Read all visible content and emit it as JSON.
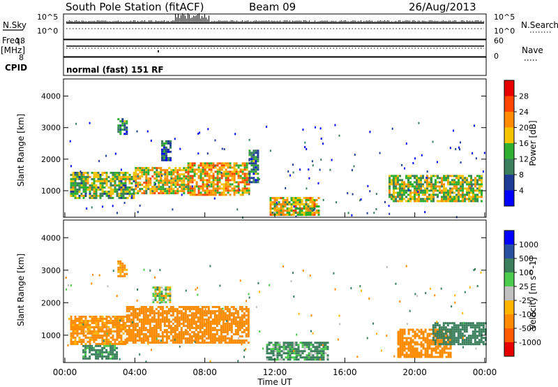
{
  "header": {
    "station": "South Pole Station (fitACF)",
    "beam": "Beam 09",
    "date": "26/Aug/2013"
  },
  "summary_panels": {
    "nsky_label": "N.Sky",
    "nsky_top_tick": "10^5",
    "nsky_bottom_tick": "10^0",
    "nsearch_label": "N.Search",
    "nsearch_top_tick": "10^5",
    "nsearch_bottom_tick": "10^0",
    "freq_label": "Freq.",
    "freq_unit": "[MHz]",
    "freq_top_tick": "18",
    "freq_bottom_tick": "8",
    "nave_label": "Nave",
    "nave_top_tick": "60",
    "nave_bottom_tick": "0",
    "cpid_label": "CPID",
    "cpid_text": "normal (fast) 151 RF"
  },
  "colors": {
    "power_scale": [
      "#0000ff",
      "#1e3c96",
      "#3a7f5c",
      "#2faf2f",
      "#f5c400",
      "#ff8c00",
      "#ff4500",
      "#e60000"
    ],
    "velocity_scale": [
      "#e60000",
      "#ff5a00",
      "#ff8c00",
      "#ffb400",
      "#c0c0c0",
      "#4ccc4c",
      "#3a7f5c",
      "#2850a0",
      "#0000ff"
    ],
    "axis": "#000000"
  },
  "chart_data": [
    {
      "type": "heatmap",
      "title": "",
      "quantity": "Power",
      "xlabel": "Time UT",
      "ylabel": "Slant Range [km]",
      "xlim_hours": [
        0,
        24
      ],
      "ylim": [
        180,
        4500
      ],
      "xticks": [
        "00:00",
        "04:00",
        "08:00",
        "12:00",
        "16:00",
        "20:00",
        "00:00"
      ],
      "yticks": [
        "1000",
        "2000",
        "3000",
        "4000"
      ],
      "colorbar_label": "Power [dB]",
      "colorbar_ticks": [
        "4",
        "8",
        "12",
        "16",
        "20",
        "24",
        "28"
      ],
      "colorbar_range": [
        0,
        32
      ],
      "regions": [
        {
          "t": [
            0.3,
            4.0
          ],
          "r": [
            800,
            1600
          ],
          "value": 14
        },
        {
          "t": [
            4.0,
            7.0
          ],
          "r": [
            900,
            1750
          ],
          "value": 18
        },
        {
          "t": [
            7.0,
            10.5
          ],
          "r": [
            900,
            1900
          ],
          "value": 20
        },
        {
          "t": [
            10.5,
            11.0
          ],
          "r": [
            1300,
            2300
          ],
          "value": 10
        },
        {
          "t": [
            11.7,
            14.5
          ],
          "r": [
            250,
            800
          ],
          "value": 18
        },
        {
          "t": [
            18.5,
            23.8
          ],
          "r": [
            700,
            1500
          ],
          "value": 16
        },
        {
          "t": [
            3.0,
            3.5
          ],
          "r": [
            2800,
            3300
          ],
          "value": 10
        },
        {
          "t": [
            5.5,
            6.0
          ],
          "r": [
            2000,
            2600
          ],
          "value": 8
        }
      ]
    },
    {
      "type": "heatmap",
      "title": "",
      "quantity": "Velocity",
      "xlabel": "Time UT",
      "ylabel": "Slant Range [km]",
      "xlim_hours": [
        0,
        24
      ],
      "ylim": [
        180,
        4500
      ],
      "xticks": [
        "00:00",
        "04:00",
        "08:00",
        "12:00",
        "16:00",
        "20:00",
        "00:00"
      ],
      "yticks": [
        "1000",
        "2000",
        "3000",
        "4000"
      ],
      "colorbar_label": "Velocity [m s^-1]",
      "colorbar_ticks": [
        "1000",
        "500",
        "100",
        "25",
        "-25",
        "-100",
        "-500",
        "-1000"
      ],
      "regions": [
        {
          "t": [
            0.3,
            3.5
          ],
          "r": [
            700,
            1600
          ],
          "value": -200
        },
        {
          "t": [
            3.5,
            10.5
          ],
          "r": [
            800,
            1900
          ],
          "value": -250
        },
        {
          "t": [
            1.0,
            3.0
          ],
          "r": [
            300,
            700
          ],
          "value": 200
        },
        {
          "t": [
            11.5,
            15.0
          ],
          "r": [
            250,
            800
          ],
          "value": 150
        },
        {
          "t": [
            19.0,
            22.0
          ],
          "r": [
            300,
            1200
          ],
          "value": -300
        },
        {
          "t": [
            21.0,
            24.0
          ],
          "r": [
            700,
            1400
          ],
          "value": 300
        },
        {
          "t": [
            3.0,
            3.5
          ],
          "r": [
            2800,
            3300
          ],
          "value": -200
        },
        {
          "t": [
            5.0,
            6.0
          ],
          "r": [
            2000,
            2500
          ],
          "value": 10
        }
      ]
    }
  ]
}
